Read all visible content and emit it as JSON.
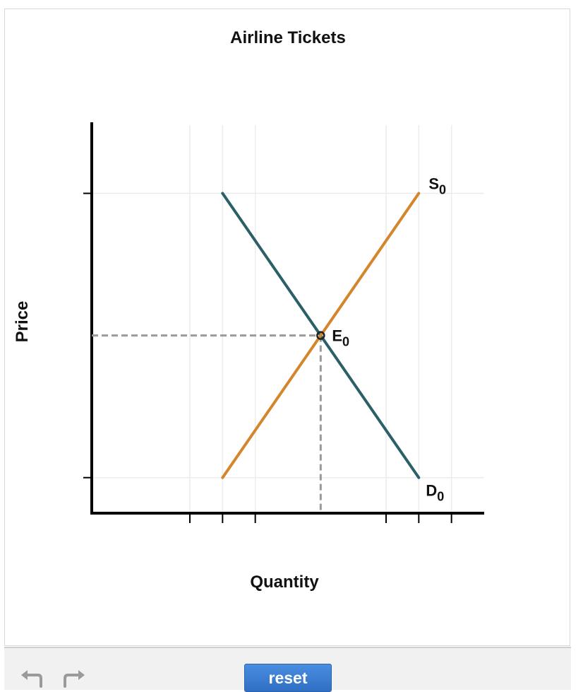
{
  "chart_data": {
    "type": "line",
    "title": "Airline Tickets",
    "xlabel": "Quantity",
    "ylabel": "Price",
    "grid": true,
    "series": [
      {
        "name": "D",
        "subscript": "0",
        "color": "#2b6068",
        "points": [
          [
            2,
            8
          ],
          [
            8,
            0
          ]
        ]
      },
      {
        "name": "S",
        "subscript": "0",
        "color": "#d4862d",
        "points": [
          [
            2,
            0
          ],
          [
            8,
            8
          ]
        ]
      }
    ],
    "equilibrium": {
      "name": "E",
      "subscript": "0",
      "x": 5,
      "y": 4
    },
    "xlim": [
      -2,
      10
    ],
    "ylim": [
      -1,
      10
    ],
    "x_ticks": [
      1,
      2,
      3,
      7,
      8,
      9
    ],
    "y_ticks": [
      0,
      8
    ],
    "x_grid": [
      1,
      2,
      3,
      7,
      8,
      9
    ],
    "y_grid": [
      0,
      8
    ]
  },
  "toolbar": {
    "undo_icon": "undo-icon",
    "redo_icon": "redo-icon",
    "reset_label": "reset"
  }
}
